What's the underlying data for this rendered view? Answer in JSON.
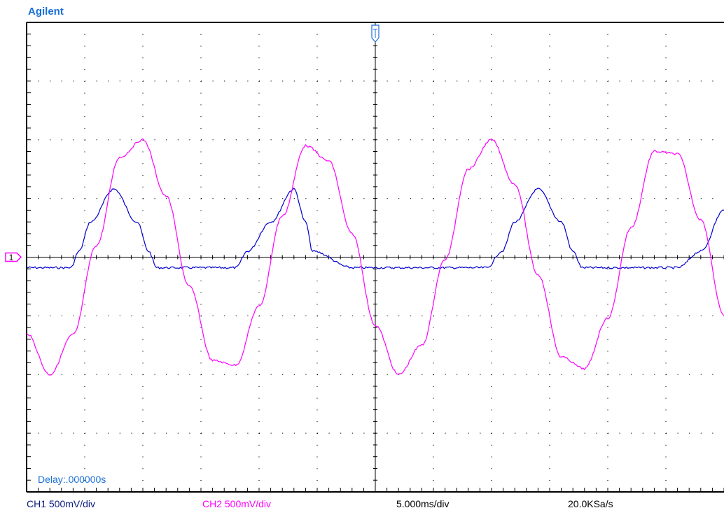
{
  "brand": "Agilent",
  "status": {
    "ch1_scale": "CH1 500mV/div",
    "ch2_scale": "CH2 500mV/div",
    "timebase": "5.000ms/div",
    "sample_rate": "20.0KSa/s"
  },
  "delay_label": "Delay:.000000s",
  "ground_marker": "1",
  "colors": {
    "ch1": "#0000cc",
    "ch2": "#ff00ff",
    "accent": "#1a6fd6",
    "grid": "#000000"
  },
  "chart_data": {
    "type": "line",
    "title": "",
    "xlabel": "",
    "ylabel": "",
    "x_unit": "ms",
    "y_unit": "V",
    "xlim": [
      -30,
      30
    ],
    "ylim": [
      -2.0,
      2.0
    ],
    "divisions": {
      "x": 12,
      "y": 8
    },
    "grid": true,
    "series": [
      {
        "name": "CH1",
        "color": "#0000cc",
        "x": [
          -30,
          -27.8,
          -26.2,
          -25.5,
          -24.5,
          -22.5,
          -20.5,
          -19.5,
          -18.8,
          -17.0,
          -14.6,
          -12.8,
          -12.0,
          -11.0,
          -9.0,
          -7.0,
          -6.0,
          -5.4,
          -2.0,
          1.6,
          3.0,
          5.0,
          7.0,
          9.6,
          10.9,
          12.0,
          14.0,
          16.0,
          17.0,
          17.8,
          21.0,
          24.5,
          26.0,
          28.0,
          30.0
        ],
        "y": [
          -0.09,
          -0.09,
          -0.09,
          0.05,
          0.3,
          0.58,
          0.3,
          0.05,
          -0.09,
          -0.09,
          -0.09,
          -0.09,
          -0.09,
          0.05,
          0.3,
          0.58,
          0.3,
          0.05,
          -0.09,
          -0.09,
          -0.09,
          -0.09,
          -0.09,
          -0.09,
          0.05,
          0.3,
          0.58,
          0.3,
          0.05,
          -0.09,
          -0.09,
          -0.09,
          -0.09,
          0.05,
          0.4
        ]
      },
      {
        "name": "CH2",
        "color": "#ff00ff",
        "x": [
          -30,
          -28,
          -26,
          -24,
          -22,
          -20,
          -18,
          -16,
          -14,
          -12,
          -10,
          -8,
          -6,
          -4,
          -2,
          0,
          2,
          4,
          6,
          8,
          10,
          12,
          14,
          16,
          18,
          20,
          22,
          24,
          26,
          28,
          30
        ],
        "y": [
          -0.65,
          -1.0,
          -0.66,
          0.1,
          0.85,
          1.0,
          0.52,
          -0.25,
          -0.88,
          -0.92,
          -0.42,
          0.35,
          0.95,
          0.82,
          0.2,
          -0.58,
          -1.0,
          -0.75,
          -0.02,
          0.75,
          1.0,
          0.62,
          -0.15,
          -0.85,
          -0.95,
          -0.52,
          0.25,
          0.9,
          0.88,
          0.32,
          -0.5
        ]
      }
    ]
  }
}
